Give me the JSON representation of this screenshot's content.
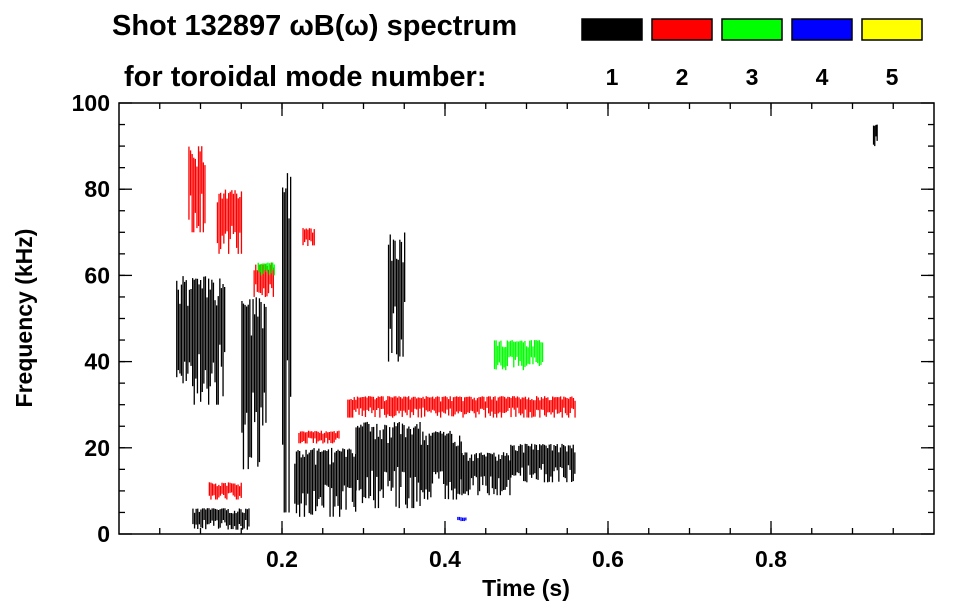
{
  "title_line1": "Shot 132897 ωB(ω) spectrum",
  "title_line2": "for toroidal mode number:",
  "legend": [
    {
      "label": "1",
      "color": "#000000"
    },
    {
      "label": "2",
      "color": "#ff0000"
    },
    {
      "label": "3",
      "color": "#00ff00"
    },
    {
      "label": "4",
      "color": "#0000ff"
    },
    {
      "label": "5",
      "color": "#ffff00"
    }
  ],
  "chart_data": {
    "type": "heatmap",
    "title": "Shot 132897 ωB(ω) spectrum for toroidal mode number:",
    "xlabel": "Time (s)",
    "ylabel": "Frequency (kHz)",
    "xlim": [
      0.0,
      1.0
    ],
    "ylim": [
      0,
      100
    ],
    "x_ticks": [
      {
        "value": 0.2,
        "label": "0.2"
      },
      {
        "value": 0.4,
        "label": "0.4"
      },
      {
        "value": 0.6,
        "label": "0.6"
      },
      {
        "value": 0.8,
        "label": "0.8"
      }
    ],
    "y_ticks": [
      {
        "value": 0,
        "label": "0"
      },
      {
        "value": 20,
        "label": "20"
      },
      {
        "value": 40,
        "label": "40"
      },
      {
        "value": 60,
        "label": "60"
      },
      {
        "value": 80,
        "label": "80"
      },
      {
        "value": 100,
        "label": "100"
      }
    ],
    "x_minor_step": 0.05,
    "y_minor_step": 5,
    "series": [
      {
        "name": "n=1",
        "color": "#000000",
        "regions": [
          {
            "t": [
              0.07,
              0.13
            ],
            "f": [
              30,
              60
            ]
          },
          {
            "t": [
              0.09,
              0.16
            ],
            "f": [
              1,
              6
            ]
          },
          {
            "t": [
              0.15,
              0.18
            ],
            "f": [
              15,
              55
            ]
          },
          {
            "t": [
              0.2,
              0.21
            ],
            "f": [
              5,
              85
            ]
          },
          {
            "t": [
              0.215,
              0.29
            ],
            "f": [
              4,
              20
            ]
          },
          {
            "t": [
              0.29,
              0.37
            ],
            "f": [
              6,
              26
            ]
          },
          {
            "t": [
              0.37,
              0.42
            ],
            "f": [
              8,
              24
            ]
          },
          {
            "t": [
              0.42,
              0.48
            ],
            "f": [
              9,
              19
            ]
          },
          {
            "t": [
              0.48,
              0.56
            ],
            "f": [
              12,
              21
            ]
          },
          {
            "t": [
              0.33,
              0.35
            ],
            "f": [
              40,
              70
            ]
          },
          {
            "t": [
              0.925,
              0.93
            ],
            "f": [
              90,
              95
            ]
          }
        ]
      },
      {
        "name": "n=2",
        "color": "#ff0000",
        "regions": [
          {
            "t": [
              0.085,
              0.105
            ],
            "f": [
              70,
              90
            ]
          },
          {
            "t": [
              0.12,
              0.15
            ],
            "f": [
              65,
              80
            ]
          },
          {
            "t": [
              0.165,
              0.19
            ],
            "f": [
              55,
              63
            ]
          },
          {
            "t": [
              0.225,
              0.24
            ],
            "f": [
              66,
              71
            ]
          },
          {
            "t": [
              0.22,
              0.27
            ],
            "f": [
              21,
              24
            ]
          },
          {
            "t": [
              0.28,
              0.56
            ],
            "f": [
              27,
              32
            ]
          },
          {
            "t": [
              0.11,
              0.15
            ],
            "f": [
              8,
              12
            ]
          }
        ]
      },
      {
        "name": "n=3",
        "color": "#00ff00",
        "regions": [
          {
            "t": [
              0.17,
              0.19
            ],
            "f": [
              60,
              63
            ]
          },
          {
            "t": [
              0.46,
              0.52
            ],
            "f": [
              38,
              45
            ]
          }
        ]
      },
      {
        "name": "n=4",
        "color": "#0000ff",
        "regions": [
          {
            "t": [
              0.415,
              0.425
            ],
            "f": [
              3,
              4
            ]
          }
        ]
      },
      {
        "name": "n=5",
        "color": "#ffff00",
        "regions": []
      }
    ]
  }
}
